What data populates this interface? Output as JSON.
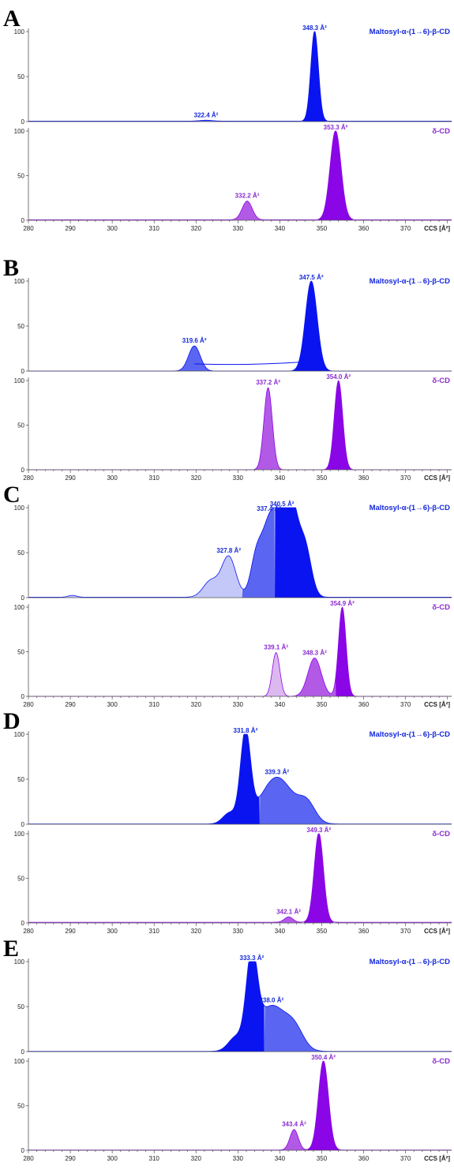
{
  "colors": {
    "blue_dark": "#0a14f0",
    "blue_mid": "#5a66f2",
    "blue_light": "#c4c8f8",
    "blue_text": "#1428dc",
    "purple_dark": "#8a06e6",
    "purple_mid": "#b25ae6",
    "purple_light": "#dcb8f0",
    "purple_text": "#8a2ad0",
    "axis": "#555555"
  },
  "chart_data": [
    {
      "type": "area",
      "panel": "A",
      "xlabel": "CCS [Å²]",
      "xlim": [
        280,
        381
      ],
      "x_ticks": [
        280,
        290,
        300,
        310,
        320,
        330,
        340,
        350,
        360,
        370
      ],
      "traces": [
        {
          "name": "Maltosyl-α-(1→6)-β-CD",
          "color_key": "blue",
          "ylim": [
            0,
            100
          ],
          "y_ticks": [
            0,
            50,
            100
          ],
          "baseline_level": 0.5,
          "peaks": [
            {
              "center": 348.3,
              "height": 100,
              "width": 0.9,
              "shade": "dark",
              "label": "348.3 Å²"
            },
            {
              "center": 322.4,
              "height": 1,
              "width": 1.5,
              "shade": "mid",
              "label": "322.4 Å²"
            }
          ]
        },
        {
          "name": "δ-CD",
          "color_key": "purple",
          "ylim": [
            0,
            100
          ],
          "y_ticks": [
            0,
            50,
            100
          ],
          "baseline_level": 0.5,
          "peaks": [
            {
              "center": 353.3,
              "height": 100,
              "width": 1.3,
              "shade": "dark",
              "label": "353.3 Å²"
            },
            {
              "center": 332.2,
              "height": 21,
              "width": 1.2,
              "shade": "mid",
              "label": "332.2 Å²"
            }
          ]
        }
      ]
    },
    {
      "type": "area",
      "panel": "B",
      "xlabel": "CCS [Å²]",
      "xlim": [
        280,
        381
      ],
      "x_ticks": [
        280,
        290,
        300,
        310,
        320,
        330,
        340,
        350,
        360,
        370
      ],
      "traces": [
        {
          "name": "Maltosyl-α-(1→6)-β-CD",
          "color_key": "blue",
          "ylim": [
            0,
            100
          ],
          "y_ticks": [
            0,
            50,
            100
          ],
          "baseline_level": 0,
          "peaks": [
            {
              "center": 347.5,
              "height": 100,
              "width": 1.4,
              "shade": "dark",
              "label": "347.5 Å²"
            },
            {
              "center": 319.6,
              "height": 28,
              "width": 1.4,
              "shade": "mid",
              "label": "319.6 Å²"
            }
          ],
          "outline_bridge": {
            "from": 319.6,
            "to": 345,
            "y_from": 8,
            "y_to": 10
          }
        },
        {
          "name": "δ-CD",
          "color_key": "purple",
          "ylim": [
            0,
            100
          ],
          "y_ticks": [
            0,
            50,
            100
          ],
          "baseline_level": 0,
          "peaks": [
            {
              "center": 354.0,
              "height": 100,
              "width": 1.0,
              "shade": "dark",
              "label": "354.0 Å²"
            },
            {
              "center": 337.2,
              "height": 92,
              "width": 1.0,
              "shade": "mid",
              "label": "337.2 Å²"
            }
          ]
        }
      ]
    },
    {
      "type": "area",
      "panel": "C",
      "xlabel": "CCS [Å²]",
      "xlim": [
        280,
        381
      ],
      "x_ticks": [
        280,
        290,
        300,
        310,
        320,
        330,
        340,
        350,
        360,
        370
      ],
      "traces": [
        {
          "name": "Maltosyl-α-(1→6)-β-CD",
          "color_key": "blue",
          "ylim": [
            0,
            100
          ],
          "y_ticks": [
            0,
            50,
            100
          ],
          "baseline_level": 0.5,
          "peaks": [
            {
              "center": 340.5,
              "height": 98,
              "width": 1.6,
              "shade": "dark",
              "label": "340.5 Å²"
            },
            {
              "center": 343,
              "height": 80,
              "width": 1.5,
              "shade": "dark",
              "label": ""
            },
            {
              "center": 346,
              "height": 55,
              "width": 1.5,
              "shade": "dark",
              "label": ""
            },
            {
              "center": 337.4,
              "height": 72,
              "width": 1.5,
              "shade": "mid",
              "label": "337.4 Å²"
            },
            {
              "center": 334.5,
              "height": 48,
              "width": 1.4,
              "shade": "mid",
              "label": ""
            },
            {
              "center": 327.8,
              "height": 45,
              "width": 1.7,
              "shade": "light",
              "label": "327.8 Å²"
            },
            {
              "center": 323.5,
              "height": 18,
              "width": 1.8,
              "shade": "light",
              "label": ""
            },
            {
              "center": 290.5,
              "height": 2,
              "width": 1.0,
              "shade": "light",
              "label": ""
            }
          ],
          "regions": [
            {
              "shade": "light",
              "from": 280,
              "to": 331
            },
            {
              "shade": "mid",
              "from": 331,
              "to": 338.8
            },
            {
              "shade": "dark",
              "from": 338.8,
              "to": 381
            }
          ]
        },
        {
          "name": "δ-CD",
          "color_key": "purple",
          "ylim": [
            0,
            100
          ],
          "y_ticks": [
            0,
            50,
            100
          ],
          "baseline_level": 0,
          "peaks": [
            {
              "center": 354.9,
              "height": 100,
              "width": 0.9,
              "shade": "dark",
              "label": "354.9 Å²"
            },
            {
              "center": 348.3,
              "height": 43,
              "width": 1.6,
              "shade": "mid",
              "label": "348.3 Å²"
            },
            {
              "center": 339.1,
              "height": 49,
              "width": 0.9,
              "shade": "light",
              "label": "339.1 Å²"
            }
          ]
        }
      ]
    },
    {
      "type": "area",
      "panel": "D",
      "xlabel": "CCS [Å²]",
      "xlim": [
        280,
        381
      ],
      "x_ticks": [
        280,
        290,
        300,
        310,
        320,
        330,
        340,
        350,
        360,
        370
      ],
      "traces": [
        {
          "name": "Maltosyl-α-(1→6)-β-CD",
          "color_key": "blue",
          "ylim": [
            0,
            100
          ],
          "y_ticks": [
            0,
            50,
            100
          ],
          "baseline_level": 0.3,
          "peaks": [
            {
              "center": 331.8,
              "height": 98,
              "width": 1.2,
              "shade": "dark",
              "label": "331.8 Å²"
            },
            {
              "center": 328,
              "height": 12,
              "width": 1.6,
              "shade": "dark",
              "label": ""
            },
            {
              "center": 339.3,
              "height": 52,
              "width": 3.8,
              "shade": "mid",
              "label": "339.3 Å²"
            },
            {
              "center": 346.5,
              "height": 20,
              "width": 2.0,
              "shade": "mid",
              "label": ""
            }
          ],
          "regions": [
            {
              "shade": "dark",
              "from": 280,
              "to": 335.2
            },
            {
              "shade": "mid",
              "from": 335.2,
              "to": 381
            }
          ]
        },
        {
          "name": "δ-CD",
          "color_key": "purple",
          "ylim": [
            0,
            100
          ],
          "y_ticks": [
            0,
            50,
            100
          ],
          "baseline_level": 0.8,
          "peaks": [
            {
              "center": 349.3,
              "height": 100,
              "width": 1.1,
              "shade": "dark",
              "label": "349.3 Å²"
            },
            {
              "center": 342.1,
              "height": 6,
              "width": 1.0,
              "shade": "mid",
              "label": "342.1 Å²"
            }
          ]
        }
      ]
    },
    {
      "type": "area",
      "panel": "E",
      "xlabel": "CCS [Å²]",
      "xlim": [
        280,
        381
      ],
      "x_ticks": [
        280,
        290,
        300,
        310,
        320,
        330,
        340,
        350,
        360,
        370
      ],
      "traces": [
        {
          "name": "Maltosyl-α-(1→6)-β-CD",
          "color_key": "blue",
          "ylim": [
            0,
            100
          ],
          "y_ticks": [
            0,
            50,
            100
          ],
          "baseline_level": 0.3,
          "peaks": [
            {
              "center": 333.3,
              "height": 98,
              "width": 1.3,
              "shade": "dark",
              "label": "333.3 Å²"
            },
            {
              "center": 329.5,
              "height": 15,
              "width": 1.8,
              "shade": "dark",
              "label": ""
            },
            {
              "center": 338.0,
              "height": 50,
              "width": 3.3,
              "shade": "mid",
              "label": "338.0 Å²"
            },
            {
              "center": 343.5,
              "height": 22,
              "width": 2.2,
              "shade": "mid",
              "label": ""
            }
          ],
          "regions": [
            {
              "shade": "dark",
              "from": 280,
              "to": 336.3
            },
            {
              "shade": "mid",
              "from": 336.3,
              "to": 381
            }
          ]
        },
        {
          "name": "δ-CD",
          "color_key": "purple",
          "ylim": [
            0,
            100
          ],
          "y_ticks": [
            0,
            50,
            100
          ],
          "baseline_level": 0.3,
          "peaks": [
            {
              "center": 350.4,
              "height": 100,
              "width": 1.2,
              "shade": "dark",
              "label": "350.4 Å²"
            },
            {
              "center": 343.4,
              "height": 23,
              "width": 1.0,
              "shade": "mid",
              "label": "343.4 Å²"
            }
          ]
        }
      ]
    }
  ]
}
